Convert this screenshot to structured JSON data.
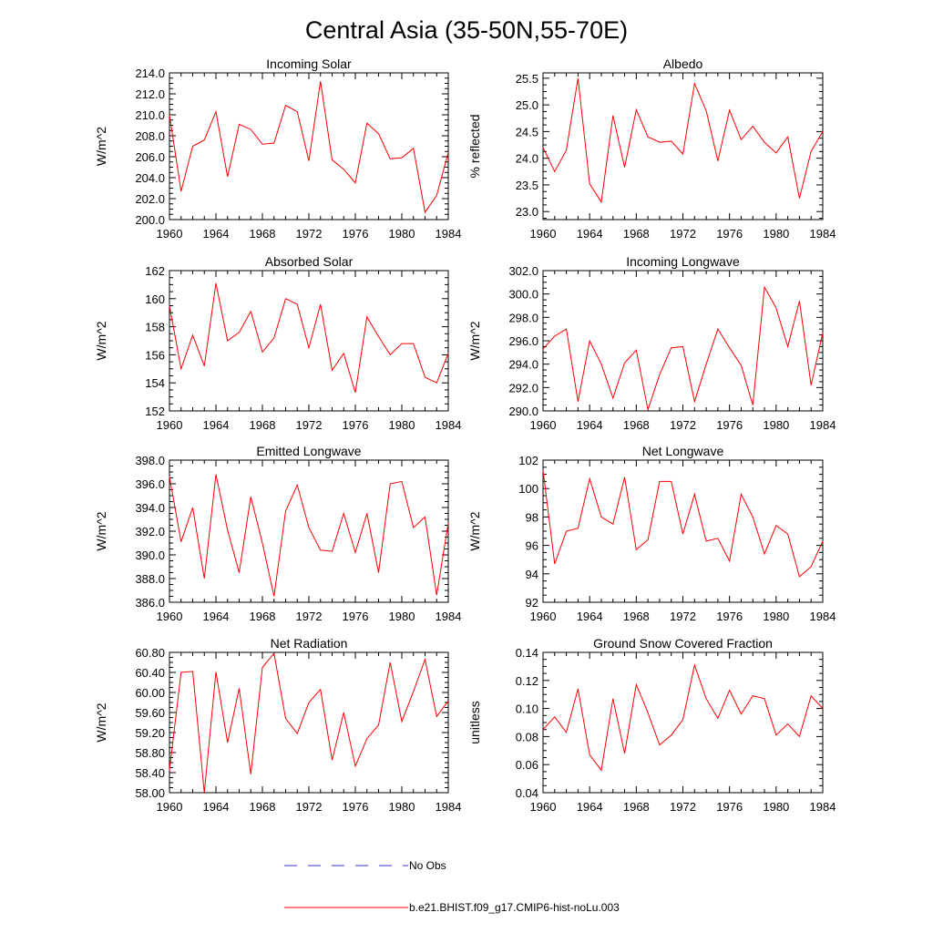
{
  "figure": {
    "title": "Central Asia (35-50N,55-70E)"
  },
  "colors": {
    "model": "#ff0000",
    "obs": "#3333cc",
    "axis": "#000000"
  },
  "legend": {
    "obs_label": "No Obs",
    "model_label": "b.e21.BHIST.f09_g17.CMIP6-hist-noLu.003"
  },
  "chart_data": [
    {
      "type": "line",
      "title": "Incoming Solar",
      "ylabel": "W/m^2",
      "xlim": [
        1960,
        1984
      ],
      "ylim": [
        200,
        214
      ],
      "x_ticks": [
        1960,
        1964,
        1968,
        1972,
        1976,
        1980,
        1984
      ],
      "y_ticks": [
        "200.0",
        "202.0",
        "204.0",
        "206.0",
        "208.0",
        "210.0",
        "212.0",
        "214.0"
      ],
      "x": [
        1960,
        1961,
        1962,
        1963,
        1964,
        1965,
        1966,
        1967,
        1968,
        1969,
        1970,
        1971,
        1972,
        1973,
        1974,
        1975,
        1976,
        1977,
        1978,
        1979,
        1980,
        1981,
        1982,
        1983,
        1984
      ],
      "series": [
        {
          "values": [
            210.0,
            202.7,
            207.0,
            207.6,
            210.3,
            204.1,
            209.1,
            208.6,
            207.2,
            207.3,
            210.9,
            210.3,
            205.6,
            213.2,
            205.7,
            204.8,
            203.5,
            209.2,
            208.2,
            205.8,
            205.9,
            206.8,
            200.7,
            202.3,
            206.4
          ]
        }
      ]
    },
    {
      "type": "line",
      "title": "Albedo",
      "ylabel": "% reflected",
      "xlim": [
        1960,
        1984
      ],
      "ylim": [
        22.85,
        25.6
      ],
      "x_ticks": [
        1960,
        1964,
        1968,
        1972,
        1976,
        1980,
        1984
      ],
      "y_ticks": [
        "23.0",
        "23.5",
        "24.0",
        "24.5",
        "25.0",
        "25.5"
      ],
      "x": [
        1960,
        1961,
        1962,
        1963,
        1964,
        1965,
        1966,
        1967,
        1968,
        1969,
        1970,
        1971,
        1972,
        1973,
        1974,
        1975,
        1976,
        1977,
        1978,
        1979,
        1980,
        1981,
        1982,
        1983,
        1984
      ],
      "series": [
        {
          "values": [
            24.2,
            23.75,
            24.15,
            25.5,
            23.52,
            23.18,
            24.8,
            23.83,
            24.91,
            24.4,
            24.3,
            24.32,
            24.08,
            25.4,
            24.89,
            23.95,
            24.9,
            24.35,
            24.6,
            24.3,
            24.1,
            24.4,
            23.25,
            24.13,
            24.5
          ]
        }
      ]
    },
    {
      "type": "line",
      "title": "Absorbed Solar",
      "ylabel": "W/m^2",
      "xlim": [
        1960,
        1984
      ],
      "ylim": [
        152,
        162
      ],
      "x_ticks": [
        1960,
        1964,
        1968,
        1972,
        1976,
        1980,
        1984
      ],
      "y_ticks": [
        "152",
        "154",
        "156",
        "158",
        "160",
        "162"
      ],
      "x": [
        1960,
        1961,
        1962,
        1963,
        1964,
        1965,
        1966,
        1967,
        1968,
        1969,
        1970,
        1971,
        1972,
        1973,
        1974,
        1975,
        1976,
        1977,
        1978,
        1979,
        1980,
        1981,
        1982,
        1983,
        1984
      ],
      "series": [
        {
          "values": [
            159.5,
            155.0,
            157.4,
            155.2,
            161.1,
            157.0,
            157.6,
            159.1,
            156.2,
            157.2,
            160.0,
            159.6,
            156.5,
            159.6,
            154.9,
            156.1,
            153.3,
            158.7,
            157.3,
            156.0,
            156.8,
            156.8,
            154.4,
            154.0,
            156.1
          ]
        }
      ]
    },
    {
      "type": "line",
      "title": "Incoming Longwave",
      "ylabel": "W/m^2",
      "xlim": [
        1960,
        1984
      ],
      "ylim": [
        290,
        302
      ],
      "x_ticks": [
        1960,
        1964,
        1968,
        1972,
        1976,
        1980,
        1984
      ],
      "y_ticks": [
        "290.0",
        "292.0",
        "294.0",
        "296.0",
        "298.0",
        "300.0",
        "302.0"
      ],
      "x": [
        1960,
        1961,
        1962,
        1963,
        1964,
        1965,
        1966,
        1967,
        1968,
        1969,
        1970,
        1971,
        1972,
        1973,
        1974,
        1975,
        1976,
        1977,
        1978,
        1979,
        1980,
        1981,
        1982,
        1983,
        1984
      ],
      "series": [
        {
          "values": [
            295.3,
            296.4,
            297.0,
            290.8,
            296.0,
            294.0,
            291.1,
            294.1,
            295.2,
            290.1,
            293.1,
            295.4,
            295.5,
            290.8,
            294.0,
            297.0,
            295.4,
            293.9,
            290.5,
            300.6,
            298.8,
            295.5,
            299.4,
            292.2,
            296.7
          ]
        }
      ]
    },
    {
      "type": "line",
      "title": "Emitted Longwave",
      "ylabel": "W/m^2",
      "xlim": [
        1960,
        1984
      ],
      "ylim": [
        386,
        398
      ],
      "x_ticks": [
        1960,
        1964,
        1968,
        1972,
        1976,
        1980,
        1984
      ],
      "y_ticks": [
        "386.0",
        "388.0",
        "390.0",
        "392.0",
        "394.0",
        "396.0",
        "398.0"
      ],
      "x": [
        1960,
        1961,
        1962,
        1963,
        1964,
        1965,
        1966,
        1967,
        1968,
        1969,
        1970,
        1971,
        1972,
        1973,
        1974,
        1975,
        1976,
        1977,
        1978,
        1979,
        1980,
        1981,
        1982,
        1983,
        1984
      ],
      "series": [
        {
          "values": [
            396.6,
            391.1,
            394.0,
            388.0,
            396.8,
            392.1,
            388.5,
            394.9,
            391.0,
            386.5,
            393.7,
            395.9,
            392.3,
            390.4,
            390.3,
            393.5,
            390.2,
            393.5,
            388.5,
            396.0,
            396.2,
            392.3,
            393.2,
            386.6,
            392.7
          ]
        }
      ]
    },
    {
      "type": "line",
      "title": "Net Longwave",
      "ylabel": "W/m^2",
      "xlim": [
        1960,
        1984
      ],
      "ylim": [
        92,
        102
      ],
      "x_ticks": [
        1960,
        1964,
        1968,
        1972,
        1976,
        1980,
        1984
      ],
      "y_ticks": [
        "92",
        "94",
        "96",
        "98",
        "100",
        "102"
      ],
      "x": [
        1960,
        1961,
        1962,
        1963,
        1964,
        1965,
        1966,
        1967,
        1968,
        1969,
        1970,
        1971,
        1972,
        1973,
        1974,
        1975,
        1976,
        1977,
        1978,
        1979,
        1980,
        1981,
        1982,
        1983,
        1984
      ],
      "series": [
        {
          "values": [
            101.3,
            94.7,
            97.0,
            97.2,
            100.7,
            98.0,
            97.5,
            100.8,
            95.7,
            96.4,
            100.5,
            100.5,
            96.8,
            99.6,
            96.3,
            96.5,
            94.9,
            99.6,
            98.0,
            95.4,
            97.4,
            96.8,
            93.8,
            94.5,
            96.3
          ]
        }
      ]
    },
    {
      "type": "line",
      "title": "Net Radiation",
      "ylabel": "W/m^2",
      "xlim": [
        1960,
        1984
      ],
      "ylim": [
        58,
        60.8
      ],
      "x_ticks": [
        1960,
        1964,
        1968,
        1972,
        1976,
        1980,
        1984
      ],
      "y_ticks": [
        "58.00",
        "58.40",
        "58.80",
        "59.20",
        "59.60",
        "60.00",
        "60.40",
        "60.80"
      ],
      "x": [
        1960,
        1961,
        1962,
        1963,
        1964,
        1965,
        1966,
        1967,
        1968,
        1969,
        1970,
        1971,
        1972,
        1973,
        1974,
        1975,
        1976,
        1977,
        1978,
        1979,
        1980,
        1981,
        1982,
        1983,
        1984
      ],
      "series": [
        {
          "values": [
            58.45,
            60.4,
            60.42,
            58.0,
            60.41,
            59.0,
            60.08,
            58.37,
            60.5,
            60.78,
            59.48,
            59.18,
            59.8,
            60.06,
            58.65,
            59.6,
            58.53,
            59.08,
            59.35,
            60.6,
            59.42,
            60.02,
            60.66,
            59.52,
            59.83
          ]
        }
      ]
    },
    {
      "type": "line",
      "title": "Ground Snow Covered Fraction",
      "ylabel": "unitless",
      "xlim": [
        1960,
        1984
      ],
      "ylim": [
        0.04,
        0.14
      ],
      "x_ticks": [
        1960,
        1964,
        1968,
        1972,
        1976,
        1980,
        1984
      ],
      "y_ticks": [
        "0.04",
        "0.06",
        "0.08",
        "0.10",
        "0.12",
        "0.14"
      ],
      "x": [
        1960,
        1961,
        1962,
        1963,
        1964,
        1965,
        1966,
        1967,
        1968,
        1969,
        1970,
        1971,
        1972,
        1973,
        1974,
        1975,
        1976,
        1977,
        1978,
        1979,
        1980,
        1981,
        1982,
        1983,
        1984
      ],
      "series": [
        {
          "values": [
            0.085,
            0.094,
            0.083,
            0.114,
            0.067,
            0.056,
            0.107,
            0.068,
            0.117,
            0.097,
            0.074,
            0.081,
            0.092,
            0.131,
            0.107,
            0.093,
            0.113,
            0.096,
            0.109,
            0.107,
            0.081,
            0.089,
            0.08,
            0.109,
            0.1
          ]
        }
      ]
    }
  ]
}
